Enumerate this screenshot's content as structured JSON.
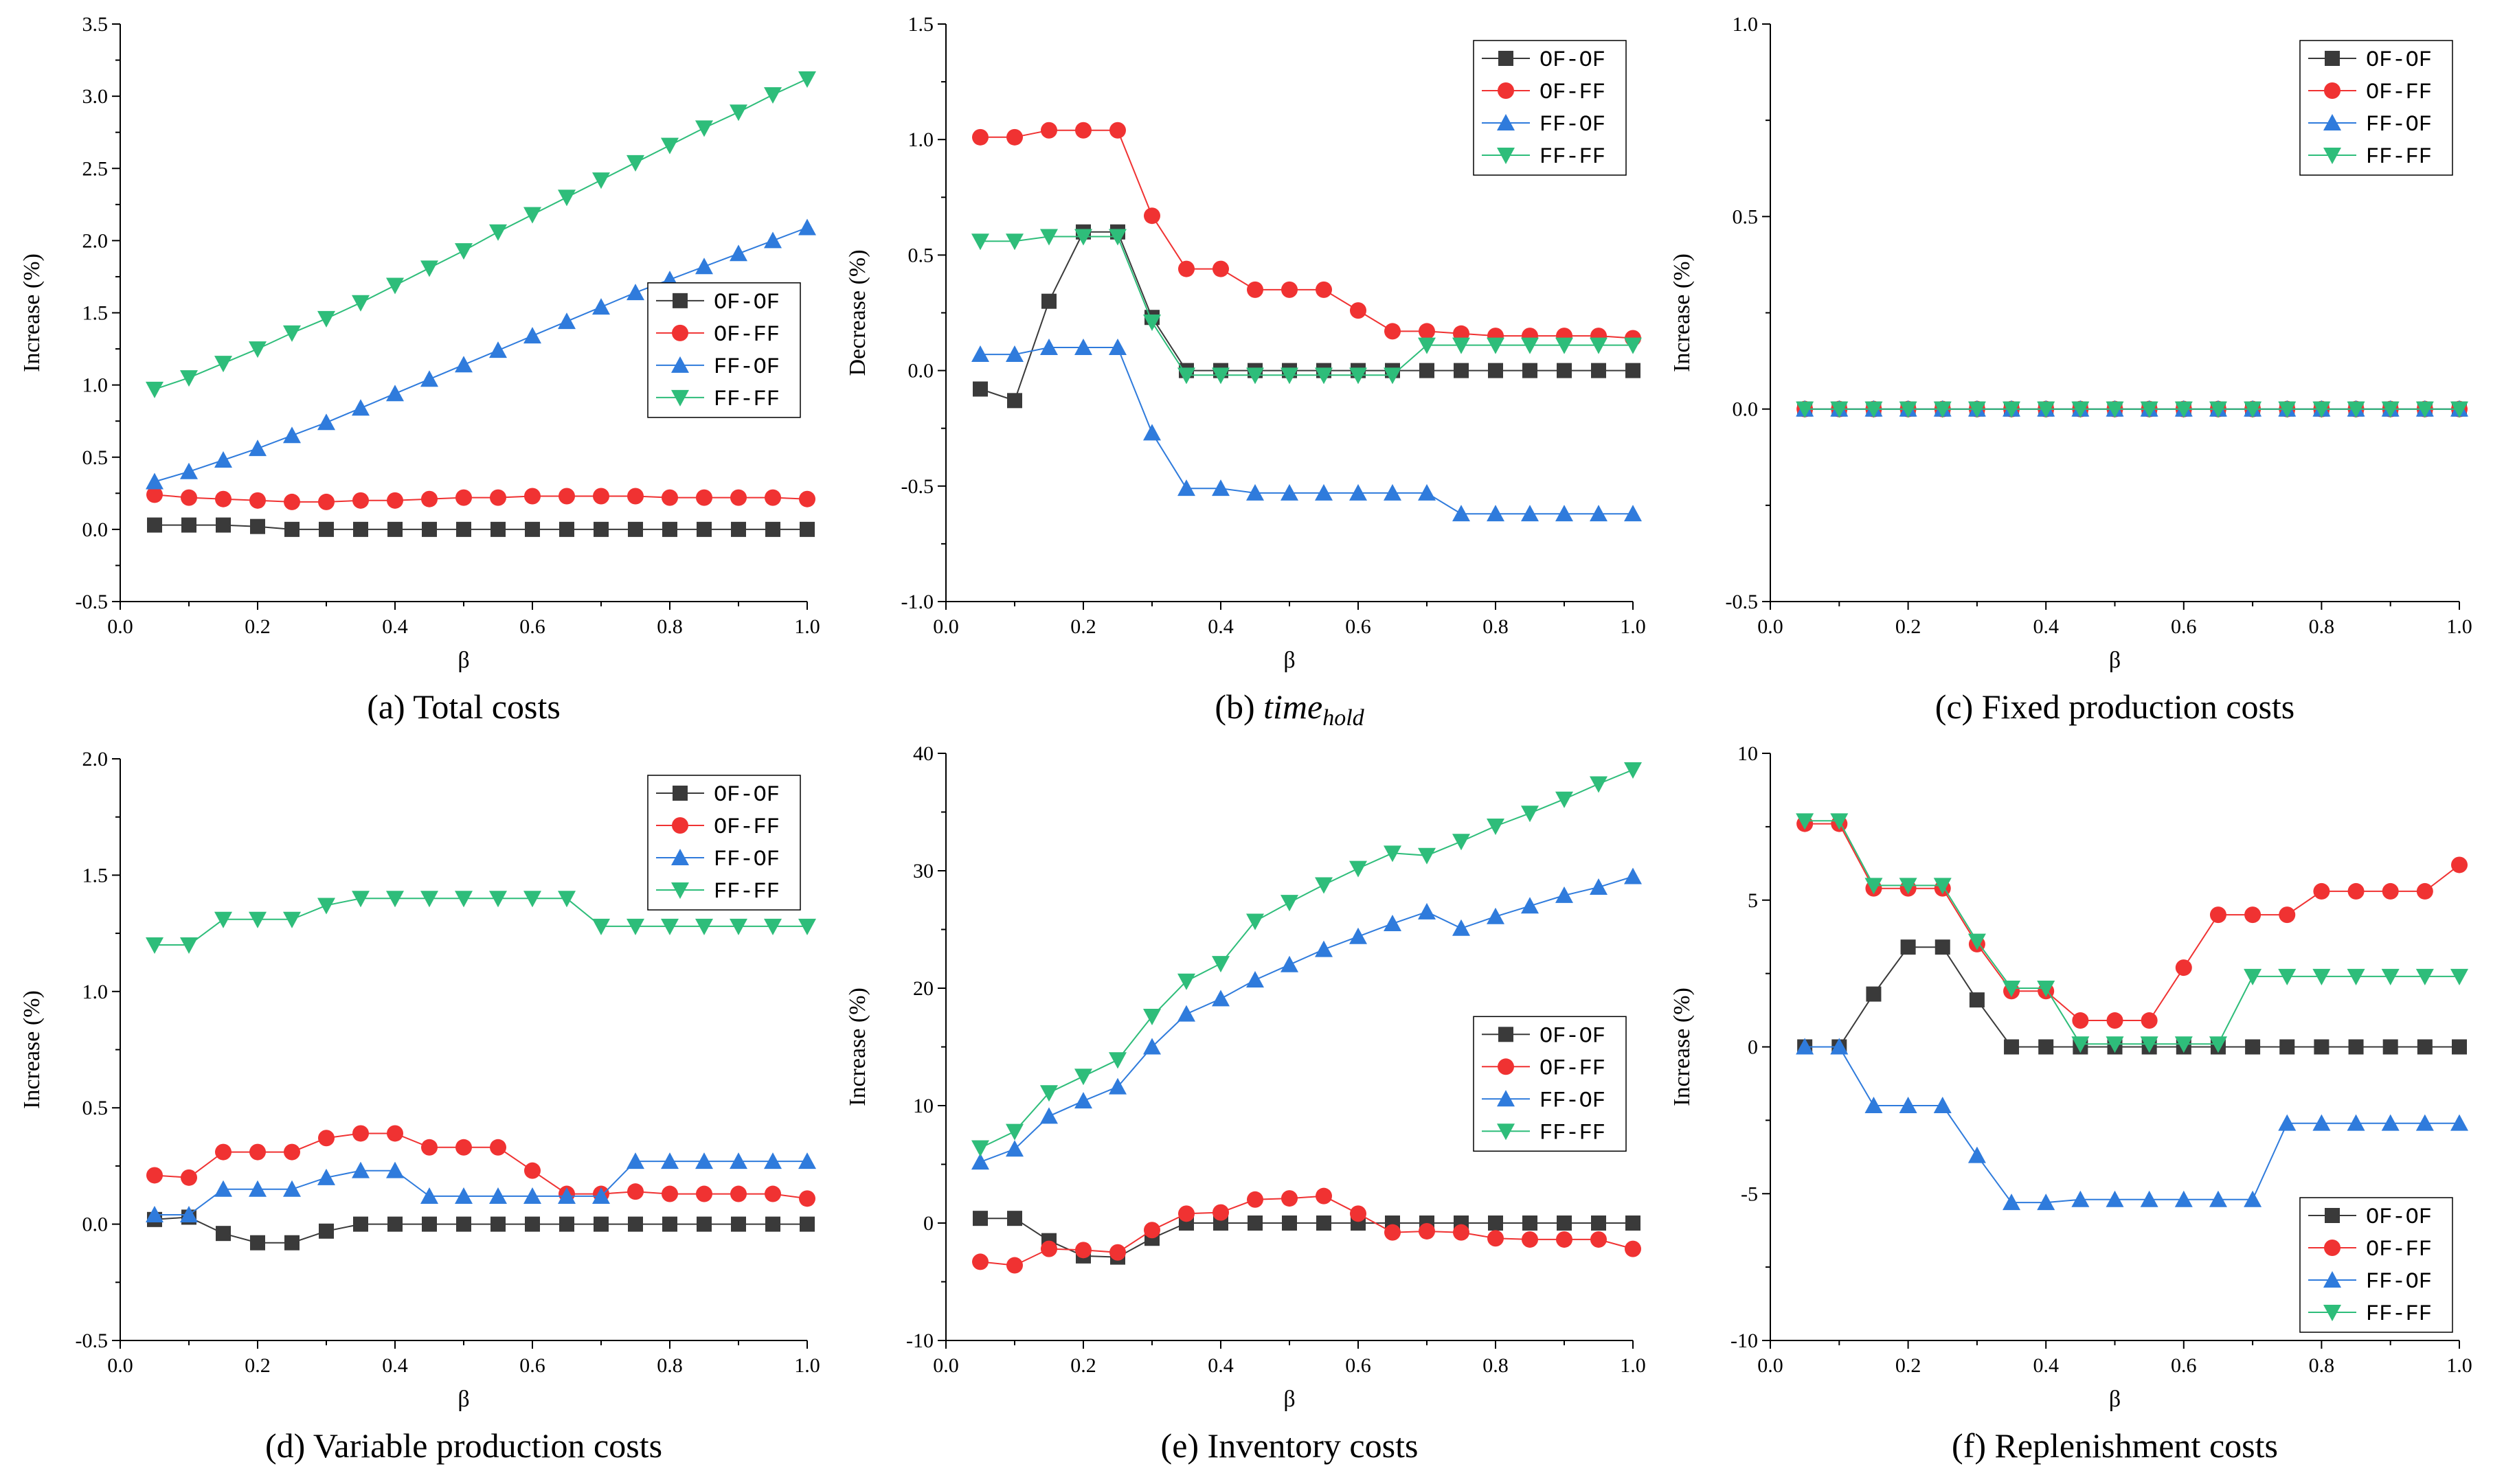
{
  "figure": {
    "series_styles": {
      "OF-OF": {
        "color": "#3a3a3a",
        "marker": "square"
      },
      "OF-FF": {
        "color": "#f03232",
        "marker": "circle"
      },
      "FF-OF": {
        "color": "#2f7bdc",
        "marker": "triangle-up"
      },
      "FF-FF": {
        "color": "#2ebd7a",
        "marker": "triangle-down"
      }
    }
  },
  "chart_data": [
    {
      "id": "a",
      "type": "line",
      "caption_prefix": "(a) ",
      "caption_main": "Total costs",
      "caption_sub": "",
      "caption_italic": false,
      "xlabel": "β",
      "ylabel": "Increase (%)",
      "xlim": [
        0.0,
        1.0
      ],
      "ylim": [
        -0.5,
        3.5
      ],
      "x_tick_labels": [
        "0.0",
        "0.2",
        "0.4",
        "0.6",
        "0.8",
        "1.0"
      ],
      "y_tick_labels": [
        "-0.5",
        "0.0",
        "0.5",
        "1.0",
        "1.5",
        "2.0",
        "2.5",
        "3.0",
        "3.5"
      ],
      "legend_position": "right-middle",
      "x": [
        0.05,
        0.1,
        0.15,
        0.2,
        0.25,
        0.3,
        0.35,
        0.4,
        0.45,
        0.5,
        0.55,
        0.6,
        0.65,
        0.7,
        0.75,
        0.8,
        0.85,
        0.9,
        0.95,
        1.0
      ],
      "series": [
        {
          "name": "OF-OF",
          "values": [
            0.03,
            0.03,
            0.03,
            0.02,
            0.0,
            0.0,
            0.0,
            0.0,
            0.0,
            0.0,
            0.0,
            0.0,
            0.0,
            0.0,
            0.0,
            0.0,
            0.0,
            0.0,
            0.0,
            0.0
          ]
        },
        {
          "name": "OF-FF",
          "values": [
            0.24,
            0.22,
            0.21,
            0.2,
            0.19,
            0.19,
            0.2,
            0.2,
            0.21,
            0.22,
            0.22,
            0.23,
            0.23,
            0.23,
            0.23,
            0.22,
            0.22,
            0.22,
            0.22,
            0.21
          ]
        },
        {
          "name": "FF-OF",
          "values": [
            0.33,
            0.4,
            0.48,
            0.56,
            0.65,
            0.74,
            0.84,
            0.94,
            1.04,
            1.14,
            1.24,
            1.34,
            1.44,
            1.54,
            1.64,
            1.73,
            1.82,
            1.91,
            2.0,
            2.09
          ]
        },
        {
          "name": "FF-FF",
          "values": [
            0.97,
            1.05,
            1.15,
            1.25,
            1.36,
            1.46,
            1.57,
            1.69,
            1.81,
            1.93,
            2.06,
            2.18,
            2.3,
            2.42,
            2.54,
            2.66,
            2.78,
            2.89,
            3.01,
            3.12
          ]
        }
      ]
    },
    {
      "id": "b",
      "type": "line",
      "caption_prefix": "(b) ",
      "caption_main": "time",
      "caption_sub": "hold",
      "caption_italic": true,
      "xlabel": "β",
      "ylabel": "Decrease (%)",
      "xlim": [
        0.0,
        1.0
      ],
      "ylim": [
        -1.0,
        1.5
      ],
      "x_tick_labels": [
        "0.0",
        "0.2",
        "0.4",
        "0.6",
        "0.8",
        "1.0"
      ],
      "y_tick_labels": [
        "-1.0",
        "-0.5",
        "0.0",
        "0.5",
        "1.0",
        "1.5"
      ],
      "legend_position": "top-right",
      "x": [
        0.05,
        0.1,
        0.15,
        0.2,
        0.25,
        0.3,
        0.35,
        0.4,
        0.45,
        0.5,
        0.55,
        0.6,
        0.65,
        0.7,
        0.75,
        0.8,
        0.85,
        0.9,
        0.95,
        1.0
      ],
      "series": [
        {
          "name": "OF-OF",
          "values": [
            -0.08,
            -0.13,
            0.3,
            0.6,
            0.6,
            0.23,
            0.0,
            0.0,
            0.0,
            0.0,
            0.0,
            0.0,
            0.0,
            0.0,
            0.0,
            0.0,
            0.0,
            0.0,
            0.0,
            0.0
          ]
        },
        {
          "name": "OF-FF",
          "values": [
            1.01,
            1.01,
            1.04,
            1.04,
            1.04,
            0.67,
            0.44,
            0.44,
            0.35,
            0.35,
            0.35,
            0.26,
            0.17,
            0.17,
            0.16,
            0.15,
            0.15,
            0.15,
            0.15,
            0.14
          ]
        },
        {
          "name": "FF-OF",
          "values": [
            0.07,
            0.07,
            0.1,
            0.1,
            0.1,
            -0.27,
            -0.51,
            -0.51,
            -0.53,
            -0.53,
            -0.53,
            -0.53,
            -0.53,
            -0.53,
            -0.62,
            -0.62,
            -0.62,
            -0.62,
            -0.62,
            -0.62
          ]
        },
        {
          "name": "FF-FF",
          "values": [
            0.56,
            0.56,
            0.58,
            0.58,
            0.58,
            0.21,
            -0.02,
            -0.02,
            -0.02,
            -0.02,
            -0.02,
            -0.02,
            -0.02,
            0.11,
            0.11,
            0.11,
            0.11,
            0.11,
            0.11,
            0.11
          ]
        }
      ]
    },
    {
      "id": "c",
      "type": "line",
      "caption_prefix": "(c) ",
      "caption_main": "Fixed production costs",
      "caption_sub": "",
      "caption_italic": false,
      "xlabel": "β",
      "ylabel": "Increase (%)",
      "xlim": [
        0.0,
        1.0
      ],
      "ylim": [
        -0.5,
        1.0
      ],
      "x_tick_labels": [
        "0.0",
        "0.2",
        "0.4",
        "0.6",
        "0.8",
        "1.0"
      ],
      "y_tick_labels": [
        "-0.5",
        "0.0",
        "0.5",
        "1.0"
      ],
      "legend_position": "top-right",
      "x": [
        0.05,
        0.1,
        0.15,
        0.2,
        0.25,
        0.3,
        0.35,
        0.4,
        0.45,
        0.5,
        0.55,
        0.6,
        0.65,
        0.7,
        0.75,
        0.8,
        0.85,
        0.9,
        0.95,
        1.0
      ],
      "series": [
        {
          "name": "OF-OF",
          "values": [
            0,
            0,
            0,
            0,
            0,
            0,
            0,
            0,
            0,
            0,
            0,
            0,
            0,
            0,
            0,
            0,
            0,
            0,
            0,
            0
          ]
        },
        {
          "name": "OF-FF",
          "values": [
            0,
            0,
            0,
            0,
            0,
            0,
            0,
            0,
            0,
            0,
            0,
            0,
            0,
            0,
            0,
            0,
            0,
            0,
            0,
            0
          ]
        },
        {
          "name": "FF-OF",
          "values": [
            0,
            0,
            0,
            0,
            0,
            0,
            0,
            0,
            0,
            0,
            0,
            0,
            0,
            0,
            0,
            0,
            0,
            0,
            0,
            0
          ]
        },
        {
          "name": "FF-FF",
          "values": [
            0,
            0,
            0,
            0,
            0,
            0,
            0,
            0,
            0,
            0,
            0,
            0,
            0,
            0,
            0,
            0,
            0,
            0,
            0,
            0
          ]
        }
      ]
    },
    {
      "id": "d",
      "type": "line",
      "caption_prefix": "(d) ",
      "caption_main": "Variable production costs",
      "caption_sub": "",
      "caption_italic": false,
      "xlabel": "β",
      "ylabel": "Increase (%)",
      "xlim": [
        0.0,
        1.0
      ],
      "ylim": [
        -0.5,
        2.0
      ],
      "x_tick_labels": [
        "0.0",
        "0.2",
        "0.4",
        "0.6",
        "0.8",
        "1.0"
      ],
      "y_tick_labels": [
        "-0.5",
        "0.0",
        "0.5",
        "1.0",
        "1.5",
        "2.0"
      ],
      "legend_position": "top-right",
      "x": [
        0.05,
        0.1,
        0.15,
        0.2,
        0.25,
        0.3,
        0.35,
        0.4,
        0.45,
        0.5,
        0.55,
        0.6,
        0.65,
        0.7,
        0.75,
        0.8,
        0.85,
        0.9,
        0.95,
        1.0
      ],
      "series": [
        {
          "name": "OF-OF",
          "values": [
            0.02,
            0.03,
            -0.04,
            -0.08,
            -0.08,
            -0.03,
            0.0,
            0.0,
            0.0,
            0.0,
            0.0,
            0.0,
            0.0,
            0.0,
            0.0,
            0.0,
            0.0,
            0.0,
            0.0,
            0.0
          ]
        },
        {
          "name": "OF-FF",
          "values": [
            0.21,
            0.2,
            0.31,
            0.31,
            0.31,
            0.37,
            0.39,
            0.39,
            0.33,
            0.33,
            0.33,
            0.23,
            0.13,
            0.13,
            0.14,
            0.13,
            0.13,
            0.13,
            0.13,
            0.11
          ]
        },
        {
          "name": "FF-OF",
          "values": [
            0.04,
            0.04,
            0.15,
            0.15,
            0.15,
            0.2,
            0.23,
            0.23,
            0.12,
            0.12,
            0.12,
            0.12,
            0.12,
            0.12,
            0.27,
            0.27,
            0.27,
            0.27,
            0.27,
            0.27
          ]
        },
        {
          "name": "FF-FF",
          "values": [
            1.2,
            1.2,
            1.31,
            1.31,
            1.31,
            1.37,
            1.4,
            1.4,
            1.4,
            1.4,
            1.4,
            1.4,
            1.4,
            1.28,
            1.28,
            1.28,
            1.28,
            1.28,
            1.28,
            1.28
          ]
        }
      ]
    },
    {
      "id": "e",
      "type": "line",
      "caption_prefix": "(e) ",
      "caption_main": "Inventory costs",
      "caption_sub": "",
      "caption_italic": false,
      "xlabel": "β",
      "ylabel": "Increase (%)",
      "xlim": [
        0.0,
        1.0
      ],
      "ylim": [
        -10,
        40
      ],
      "x_tick_labels": [
        "0.0",
        "0.2",
        "0.4",
        "0.6",
        "0.8",
        "1.0"
      ],
      "y_tick_labels": [
        "-10",
        "0",
        "10",
        "20",
        "30",
        "40"
      ],
      "legend_position": "right-middle",
      "x": [
        0.05,
        0.1,
        0.15,
        0.2,
        0.25,
        0.3,
        0.35,
        0.4,
        0.45,
        0.5,
        0.55,
        0.6,
        0.65,
        0.7,
        0.75,
        0.8,
        0.85,
        0.9,
        0.95,
        1.0
      ],
      "series": [
        {
          "name": "OF-OF",
          "values": [
            0.4,
            0.4,
            -1.5,
            -2.8,
            -2.9,
            -1.3,
            0.0,
            0.0,
            0.0,
            0.0,
            0.0,
            0.0,
            0.0,
            0.0,
            0.0,
            0.0,
            0.0,
            0.0,
            0.0,
            0.0
          ]
        },
        {
          "name": "OF-FF",
          "values": [
            -3.3,
            -3.6,
            -2.2,
            -2.3,
            -2.5,
            -0.6,
            0.8,
            0.9,
            2.0,
            2.1,
            2.3,
            0.8,
            -0.8,
            -0.7,
            -0.8,
            -1.3,
            -1.4,
            -1.4,
            -1.4,
            -2.2
          ]
        },
        {
          "name": "FF-OF",
          "values": [
            5.2,
            6.3,
            9.1,
            10.4,
            11.6,
            15.0,
            17.8,
            19.1,
            20.7,
            22.0,
            23.3,
            24.4,
            25.5,
            26.5,
            25.1,
            26.1,
            27.0,
            27.9,
            28.6,
            29.5
          ]
        },
        {
          "name": "FF-FF",
          "values": [
            6.4,
            7.8,
            11.1,
            12.5,
            13.9,
            17.6,
            20.6,
            22.1,
            25.7,
            27.3,
            28.8,
            30.2,
            31.5,
            31.3,
            32.5,
            33.8,
            34.9,
            36.1,
            37.4,
            38.6
          ]
        }
      ]
    },
    {
      "id": "f",
      "type": "line",
      "caption_prefix": "(f) ",
      "caption_main": "Replenishment costs",
      "caption_sub": "",
      "caption_italic": false,
      "xlabel": "β",
      "ylabel": "Increase (%)",
      "xlim": [
        0.0,
        1.0
      ],
      "ylim": [
        -10,
        10
      ],
      "x_tick_labels": [
        "0.0",
        "0.2",
        "0.4",
        "0.6",
        "0.8",
        "1.0"
      ],
      "y_tick_labels": [
        "-10",
        "-5",
        "0",
        "5",
        "10"
      ],
      "legend_position": "bottom-right",
      "x": [
        0.05,
        0.1,
        0.15,
        0.2,
        0.25,
        0.3,
        0.35,
        0.4,
        0.45,
        0.5,
        0.55,
        0.6,
        0.65,
        0.7,
        0.75,
        0.8,
        0.85,
        0.9,
        0.95,
        1.0
      ],
      "series": [
        {
          "name": "OF-OF",
          "values": [
            0.0,
            0.0,
            1.8,
            3.4,
            3.4,
            1.6,
            0.0,
            0.0,
            0.0,
            0.0,
            0.0,
            0.0,
            0.0,
            0.0,
            0.0,
            0.0,
            0.0,
            0.0,
            0.0,
            0.0
          ]
        },
        {
          "name": "OF-FF",
          "values": [
            7.6,
            7.6,
            5.4,
            5.4,
            5.4,
            3.5,
            1.9,
            1.9,
            0.9,
            0.9,
            0.9,
            2.7,
            4.5,
            4.5,
            4.5,
            5.3,
            5.3,
            5.3,
            5.3,
            6.2
          ]
        },
        {
          "name": "FF-OF",
          "values": [
            0.0,
            0.0,
            -2.0,
            -2.0,
            -2.0,
            -3.7,
            -5.3,
            -5.3,
            -5.2,
            -5.2,
            -5.2,
            -5.2,
            -5.2,
            -5.2,
            -2.6,
            -2.6,
            -2.6,
            -2.6,
            -2.6,
            -2.6
          ]
        },
        {
          "name": "FF-FF",
          "values": [
            7.7,
            7.7,
            5.5,
            5.5,
            5.5,
            3.6,
            2.0,
            2.0,
            0.1,
            0.1,
            0.1,
            0.1,
            0.1,
            2.4,
            2.4,
            2.4,
            2.4,
            2.4,
            2.4,
            2.4
          ]
        }
      ]
    }
  ]
}
